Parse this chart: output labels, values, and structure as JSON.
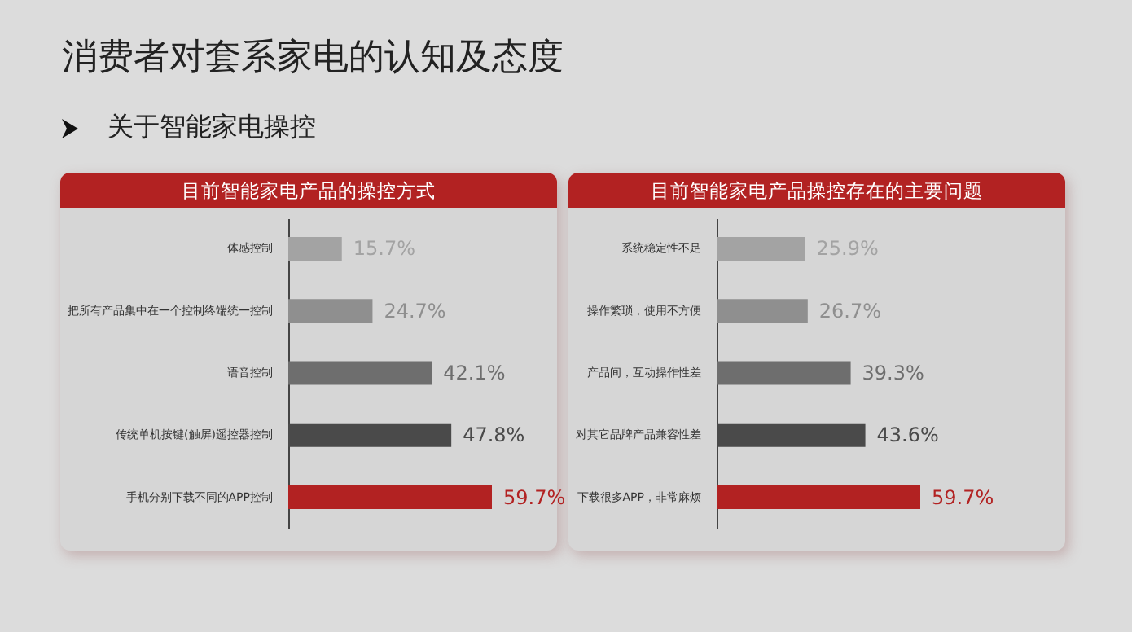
{
  "chart_data": [
    {
      "type": "bar",
      "orientation": "horizontal",
      "title": "目前智能家电产品的操控方式",
      "annotations": [
        "消费者对套系家电的认知及态度",
        "关于智能家电操控"
      ],
      "categories": [
        "体感控制",
        "把所有产品集中在一个控制终端统一控制",
        "语音控制",
        "传统单机按键(触屏)遥控器控制",
        "手机分别下载不同的APP控制"
      ],
      "values": [
        15.7,
        24.7,
        42.1,
        47.8,
        59.7
      ],
      "colors": [
        "#a3a3a3",
        "#8f8f8f",
        "#6e6e6e",
        "#4a4a4a",
        "#b22222"
      ],
      "value_labels": [
        "15.7%",
        "24.7%",
        "42.1%",
        "47.8%",
        "59.7%"
      ],
      "tick_labels": "y"
    },
    {
      "type": "bar",
      "orientation": "horizontal",
      "title": "目前智能家电产品操控存在的主要问题",
      "categories": [
        "系统稳定性不足",
        "操作繁琐，使用不方便",
        "产品间，互动操作性差",
        "对其它品牌产品兼容性差",
        "下载很多APP，非常麻烦"
      ],
      "values": [
        25.9,
        26.7,
        39.3,
        43.6,
        59.7
      ],
      "colors": [
        "#a3a3a3",
        "#8f8f8f",
        "#6e6e6e",
        "#4a4a4a",
        "#b22222"
      ],
      "value_labels": [
        "25.9%",
        "26.7%",
        "39.3%",
        "43.6%",
        "59.7%"
      ],
      "tick_labels": "y"
    }
  ]
}
